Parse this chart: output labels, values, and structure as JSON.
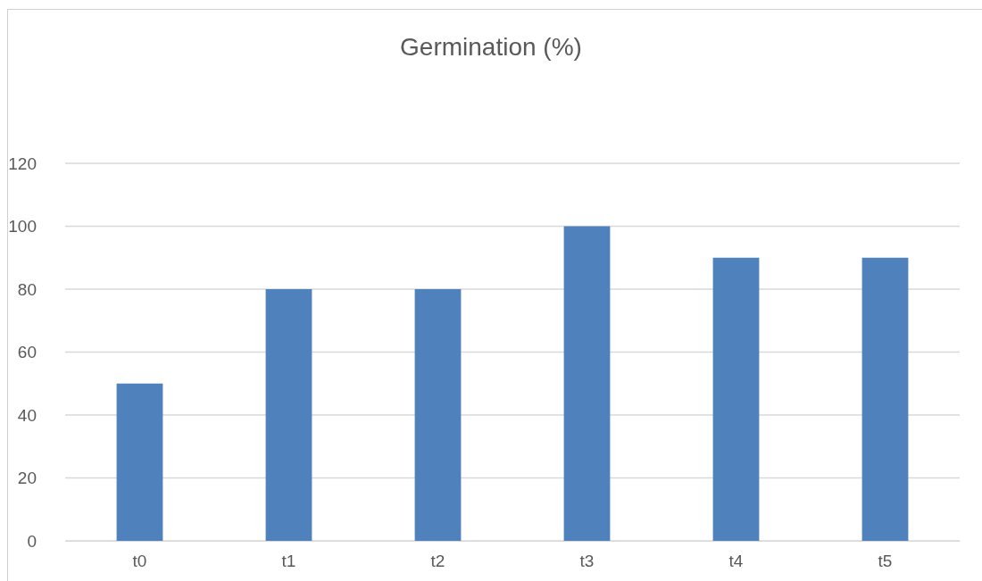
{
  "chart_data": {
    "type": "bar",
    "title": "Germination (%)",
    "categories": [
      "t0",
      "t1",
      "t2",
      "t3",
      "t4",
      "t5"
    ],
    "values": [
      50,
      80,
      80,
      100,
      90,
      90
    ],
    "color": "#4f81bd",
    "ylim": [
      0,
      120
    ],
    "yticks": [
      0,
      20,
      40,
      60,
      80,
      100,
      120
    ],
    "grid": "y"
  }
}
